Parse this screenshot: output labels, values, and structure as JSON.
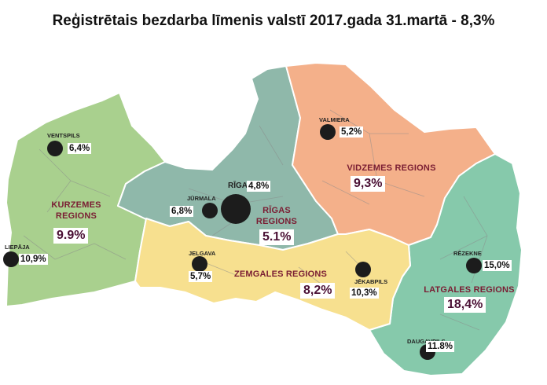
{
  "title": "Reģistrētais bezdarba līmenis valstī 2017.gada 31.martā - 8,3%",
  "colors": {
    "kurzeme": "#a9d08e",
    "riga": "#8fb8aa",
    "vidzeme": "#f4b08a",
    "zemgale": "#f7e08f",
    "latgale": "#86c9ab",
    "dot": "#1c1c1c"
  },
  "regions": {
    "kurzeme": {
      "name1": "KURZEMES",
      "name2": "REGIONS",
      "rate": "9.9%"
    },
    "riga": {
      "name1": "RĪGAS",
      "name2": "REGIONS",
      "rate": "5.1%"
    },
    "vidzeme": {
      "name1": "VIDZEMES REGIONS",
      "rate": "9,3%"
    },
    "zemgale": {
      "name1": "ZEMGALES REGIONS",
      "rate": "8,2%"
    },
    "latgale": {
      "name1": "LATGALES REGIONS",
      "rate": "18,4%"
    }
  },
  "cities": {
    "ventspils": {
      "name": "VENTSPILS",
      "rate": "6,4%"
    },
    "liepaja": {
      "name": "LIEPĀJA",
      "rate": "10,9%"
    },
    "jurmala": {
      "name": "JŪRMALA",
      "rate": "6,8%"
    },
    "riga": {
      "name": "RĪGA",
      "rate": "4,8%"
    },
    "valmiera": {
      "name": "VALMIERA",
      "rate": "5,2%"
    },
    "jelgava": {
      "name": "JELGAVA",
      "rate": "5,7%"
    },
    "jekabpils": {
      "name": "JĒKABPILS",
      "rate": "10,3%"
    },
    "rezekne": {
      "name": "RĒZEKNE",
      "rate": "15,0%"
    },
    "daugavpils": {
      "name": "DAUGAVPILS",
      "rate": "11.8%"
    }
  }
}
